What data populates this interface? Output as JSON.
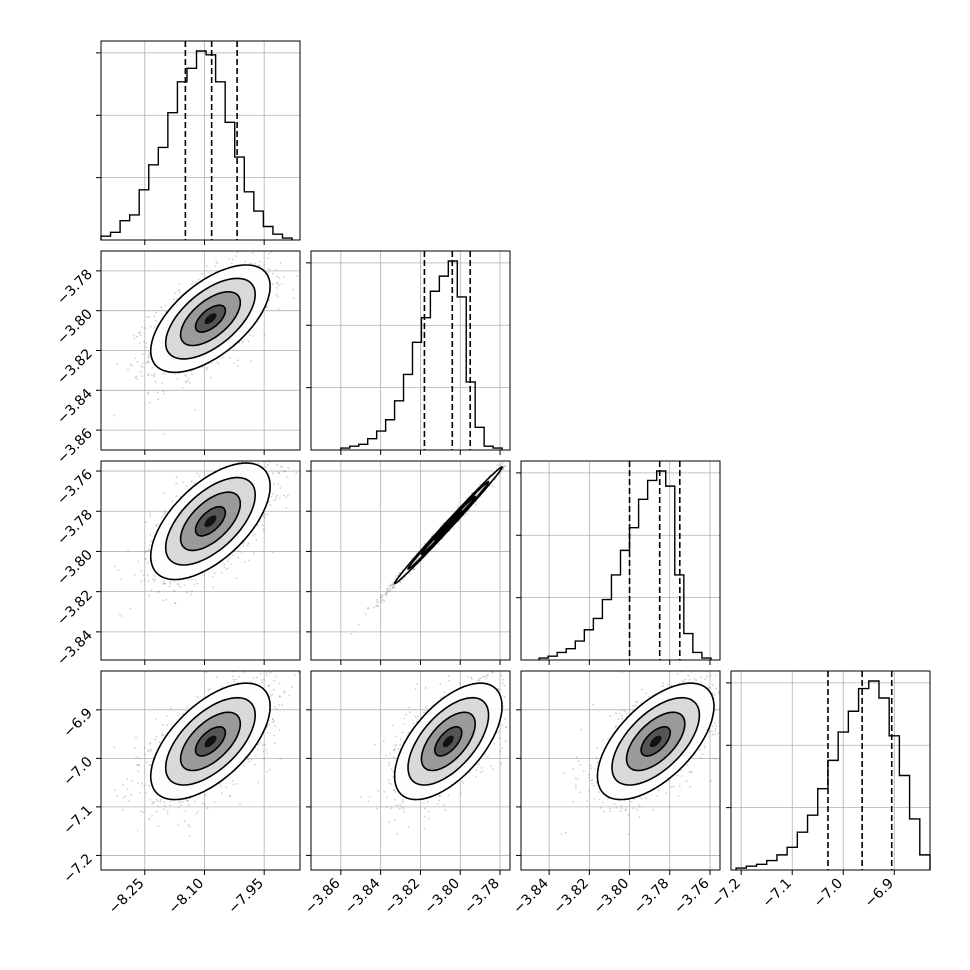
{
  "chart_data": {
    "type": "corner",
    "parameters": 4,
    "colors": {
      "axes": "#000000",
      "grid": "#b0b0b0",
      "points": "#555555",
      "background": "#ffffff"
    },
    "grid": true,
    "histograms": [
      {
        "param": 0,
        "xlim": [
          -8.36,
          -7.86
        ],
        "quantiles": [
          -8.148,
          -8.082,
          -8.018
        ],
        "median": -8.082,
        "bin_edges": [
          -8.36,
          -8.336,
          -8.312,
          -8.288,
          -8.264,
          -8.24,
          -8.216,
          -8.192,
          -8.168,
          -8.144,
          -8.12,
          -8.096,
          -8.072,
          -8.048,
          -8.024,
          -8.0,
          -7.976,
          -7.952,
          -7.928,
          -7.904,
          -7.88
        ],
        "counts": [
          2,
          4,
          10,
          13,
          26,
          39,
          48,
          66,
          82,
          89,
          98,
          96,
          82,
          61,
          43,
          25,
          15,
          7,
          3,
          1
        ]
      },
      {
        "param": 1,
        "xlim": [
          -3.875,
          -3.775
        ],
        "quantiles": [
          -3.818,
          -3.804,
          -3.795
        ],
        "median": -3.804,
        "bin_edges": [
          -3.86,
          -3.8555,
          -3.851,
          -3.8465,
          -3.842,
          -3.8375,
          -3.833,
          -3.8285,
          -3.824,
          -3.8195,
          -3.815,
          -3.8105,
          -3.806,
          -3.8015,
          -3.797,
          -3.7925,
          -3.788,
          -3.7835,
          -3.779
        ],
        "counts": [
          1,
          2,
          3,
          6,
          10,
          16,
          26,
          40,
          57,
          70,
          84,
          92,
          100,
          81,
          36,
          12,
          2,
          1
        ]
      },
      {
        "param": 2,
        "xlim": [
          -3.854,
          -3.755
        ],
        "quantiles": [
          -3.8,
          -3.785,
          -3.775
        ],
        "median": -3.785,
        "bin_edges": [
          -3.845,
          -3.8405,
          -3.836,
          -3.8315,
          -3.827,
          -3.8225,
          -3.818,
          -3.8135,
          -3.809,
          -3.8045,
          -3.8,
          -3.7955,
          -3.791,
          -3.7865,
          -3.782,
          -3.7775,
          -3.773,
          -3.7685,
          -3.764,
          -3.7595
        ],
        "counts": [
          1,
          2,
          4,
          6,
          10,
          16,
          22,
          32,
          45,
          58,
          70,
          85,
          95,
          100,
          92,
          45,
          14,
          4,
          1
        ]
      },
      {
        "param": 3,
        "xlim": [
          -7.22,
          -6.83
        ],
        "quantiles": [
          -7.03,
          -6.963,
          -6.905
        ],
        "median": -6.963,
        "bin_edges": [
          -7.21,
          -7.19,
          -7.17,
          -7.15,
          -7.13,
          -7.11,
          -7.09,
          -7.07,
          -7.05,
          -7.03,
          -7.01,
          -6.99,
          -6.97,
          -6.95,
          -6.93,
          -6.91,
          -6.89,
          -6.87,
          -6.85,
          -6.83
        ],
        "counts": [
          1,
          2,
          3,
          5,
          8,
          12,
          20,
          29,
          43,
          58,
          73,
          84,
          96,
          100,
          91,
          71,
          50,
          27,
          8
        ]
      }
    ],
    "ticks": {
      "0": [
        -8.25,
        -8.1,
        -7.95
      ],
      "1": [
        -3.86,
        -3.84,
        -3.82,
        -3.8,
        -3.78
      ],
      "2": [
        -3.84,
        -3.82,
        -3.8,
        -3.78,
        -3.76
      ],
      "3": [
        -7.2,
        -7.1,
        -7.0,
        -6.9
      ]
    },
    "tick_labels": {
      "0": [
        "−8.25",
        "−8.10",
        "−7.95"
      ],
      "1": [
        "−3.86",
        "−3.84",
        "−3.82",
        "−3.80",
        "−3.78"
      ],
      "2": [
        "−3.84",
        "−3.82",
        "−3.80",
        "−3.78",
        "−3.76"
      ],
      "3": [
        "−7.2",
        "−7.1",
        "−7.0",
        "−6.9"
      ]
    },
    "pairs": [
      {
        "x": 0,
        "y": 1,
        "mean": [
          -8.085,
          -3.804
        ],
        "sd": [
          0.075,
          0.0135
        ],
        "corr": 0.6,
        "xlim": [
          -8.36,
          -7.86
        ],
        "ylim": [
          -3.87,
          -3.77
        ]
      },
      {
        "x": 0,
        "y": 2,
        "mean": [
          -8.085,
          -3.785
        ],
        "sd": [
          0.075,
          0.0145
        ],
        "corr": 0.6,
        "xlim": [
          -8.36,
          -7.86
        ],
        "ylim": [
          -3.854,
          -3.755
        ]
      },
      {
        "x": 1,
        "y": 2,
        "mean": [
          -3.806,
          -3.787
        ],
        "sd": [
          0.0135,
          0.0145
        ],
        "corr": 0.996,
        "xlim": [
          -3.875,
          -3.775
        ],
        "ylim": [
          -3.854,
          -3.755
        ]
      },
      {
        "x": 0,
        "y": 3,
        "mean": [
          -8.085,
          -6.965
        ],
        "sd": [
          0.075,
          0.06
        ],
        "corr": 0.6,
        "xlim": [
          -8.36,
          -7.86
        ],
        "ylim": [
          -7.23,
          -6.82
        ]
      },
      {
        "x": 1,
        "y": 3,
        "mean": [
          -3.806,
          -6.965
        ],
        "sd": [
          0.0135,
          0.06
        ],
        "corr": 0.6,
        "xlim": [
          -3.875,
          -3.775
        ],
        "ylim": [
          -7.23,
          -6.82
        ]
      },
      {
        "x": 2,
        "y": 3,
        "mean": [
          -3.787,
          -6.965
        ],
        "sd": [
          0.0145,
          0.06
        ],
        "corr": 0.6,
        "xlim": [
          -3.854,
          -3.755
        ],
        "ylim": [
          -7.23,
          -6.82
        ]
      }
    ],
    "contour_levels_sigma": [
      0.5,
      1.0,
      1.5,
      2.0
    ]
  }
}
